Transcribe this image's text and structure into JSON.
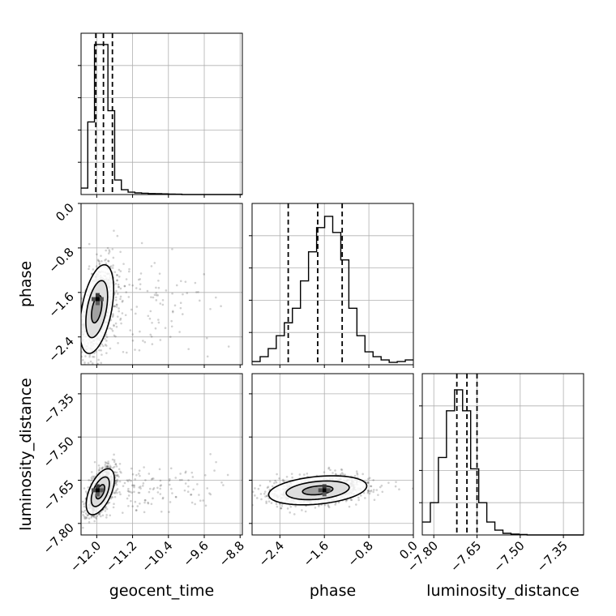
{
  "chart_data": {
    "type": "corner",
    "parameters": [
      {
        "name": "geocent_time",
        "label": "geocent_time",
        "range": [
          -12.35,
          -8.75
        ],
        "ticks": [
          -12.0,
          -11.2,
          -10.4,
          -9.6,
          -8.8
        ],
        "tick_labels": [
          "−12.0",
          "−11.2",
          "−10.4",
          "−9.6",
          "−8.8"
        ]
      },
      {
        "name": "phase",
        "label": "phase",
        "range": [
          -2.9,
          0.0
        ],
        "ticks": [
          -2.4,
          -1.6,
          -0.8,
          0.0
        ],
        "tick_labels": [
          "−2.4",
          "−1.6",
          "−0.8",
          "0.0"
        ]
      },
      {
        "name": "luminosity_distance",
        "label": "luminosity_distance",
        "range": [
          -7.84,
          -7.28
        ],
        "ticks": [
          -7.8,
          -7.65,
          -7.5,
          -7.35
        ],
        "tick_labels": [
          "−7.80",
          "−7.65",
          "−7.50",
          "−7.35"
        ]
      }
    ],
    "grid": true,
    "histograms": [
      {
        "parameter": "geocent_time",
        "bin_start": -12.35,
        "bin_width": 0.15,
        "counts": [
          0.04,
          0.45,
          0.93,
          0.93,
          0.52,
          0.09,
          0.03,
          0.015,
          0.01,
          0.008,
          0.006,
          0.005,
          0.004,
          0.003,
          0.002,
          0.0,
          0.0,
          0.0,
          0.0,
          0.0,
          0.0,
          0.0,
          0.0,
          0.0
        ],
        "quantiles": [
          -12.02,
          -11.85,
          -11.65
        ]
      },
      {
        "parameter": "phase",
        "bin_start": -2.9,
        "bin_width": 0.145,
        "counts": [
          0.02,
          0.05,
          0.1,
          0.18,
          0.26,
          0.35,
          0.52,
          0.7,
          0.85,
          0.92,
          0.82,
          0.65,
          0.35,
          0.18,
          0.08,
          0.05,
          0.03,
          0.015,
          0.02,
          0.03
        ],
        "quantiles": [
          -2.25,
          -1.72,
          -1.28
        ]
      },
      {
        "parameter": "luminosity_distance",
        "bin_start": -7.84,
        "bin_width": 0.028,
        "counts": [
          0.08,
          0.2,
          0.48,
          0.77,
          0.9,
          0.77,
          0.41,
          0.2,
          0.08,
          0.03,
          0.01,
          0.005,
          0.003,
          0.0,
          0.0,
          0.0,
          0.0,
          0.0,
          0.0,
          0.0
        ],
        "quantiles": [
          -7.72,
          -7.685,
          -7.65
        ]
      }
    ],
    "pairs": [
      {
        "x": "geocent_time",
        "y": "phase",
        "mean": [
          -12.0,
          -1.9
        ],
        "sd": [
          0.18,
          0.38
        ],
        "corr": 0.45,
        "peak": [
          -11.98,
          -1.72
        ],
        "outlier_spread": [
          1.2,
          0.6
        ],
        "seed": 11
      },
      {
        "x": "geocent_time",
        "y": "luminosity_distance",
        "mean": [
          -11.92,
          -7.69
        ],
        "sd": [
          0.15,
          0.038
        ],
        "corr": 0.55,
        "peak": [
          -11.98,
          -7.685
        ],
        "outlier_spread": [
          1.3,
          0.06
        ],
        "seed": 23
      },
      {
        "x": "phase",
        "y": "luminosity_distance",
        "mean": [
          -1.72,
          -7.685
        ],
        "sd": [
          0.42,
          0.024
        ],
        "corr": 0.3,
        "peak": [
          -1.6,
          -7.685
        ],
        "outlier_spread": [
          0.5,
          0.04
        ],
        "seed": 37
      }
    ]
  },
  "colors": {
    "contour": "#000000",
    "points": "#000000",
    "grid": "#b0b0b0",
    "frame": "#000000",
    "background": "#ffffff"
  }
}
